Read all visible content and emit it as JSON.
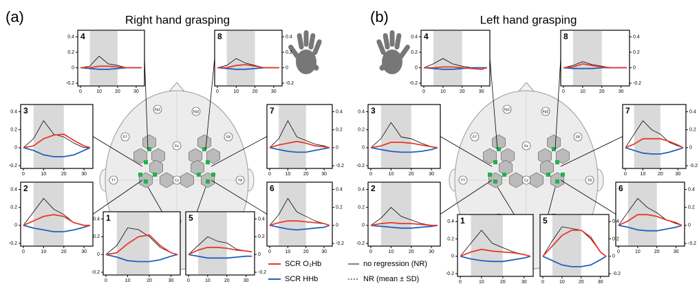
{
  "x": [
    0,
    5,
    10,
    15,
    20,
    25,
    30,
    33
  ],
  "xlim": [
    0,
    33
  ],
  "ylim": [
    -0.2,
    0.45
  ],
  "xticks": [
    0,
    10,
    20,
    30
  ],
  "yticks": [
    -0.2,
    0,
    0.2,
    0.4
  ],
  "stimulus": [
    5,
    20
  ],
  "electrodes": [
    "Fp1",
    "Fp2",
    "F7",
    "F3",
    "Fz",
    "F4",
    "F8",
    "T7",
    "C3",
    "Cz",
    "C4",
    "T8",
    "P3",
    "Pz",
    "P4"
  ],
  "legend": {
    "o2hb": {
      "label": "SCR O₂Hb",
      "color": "#e8392a"
    },
    "hhb": {
      "label": "SCR HHb",
      "color": "#1f5fbf"
    },
    "nr": {
      "label": "no regression (NR)",
      "color": "#000000"
    },
    "nr_sd": {
      "label": "NR (mean ± SD)",
      "color": "#000000"
    }
  },
  "panels": [
    {
      "label": "(a)",
      "title": "Right hand grasping",
      "plots": [
        {
          "label": 4,
          "o2hb": [
            0,
            0,
            0.02,
            0.02,
            0.01,
            0,
            0,
            0
          ],
          "hhb": [
            0,
            -0.01,
            -0.02,
            -0.02,
            -0.01,
            0,
            0,
            0
          ],
          "nr": [
            0,
            0.02,
            0.15,
            0.05,
            0.03,
            0,
            0,
            0
          ]
        },
        {
          "label": 8,
          "o2hb": [
            0,
            0,
            0.03,
            0.04,
            0.02,
            0,
            0,
            0
          ],
          "hhb": [
            0,
            -0.01,
            -0.02,
            -0.02,
            -0.01,
            0,
            0,
            0
          ],
          "nr": [
            0,
            0.03,
            0.12,
            0.06,
            0.03,
            0,
            0,
            0
          ]
        },
        {
          "label": 3,
          "o2hb": [
            0,
            0.02,
            0.1,
            0.14,
            0.15,
            0.08,
            0.02,
            0
          ],
          "hhb": [
            0,
            -0.03,
            -0.08,
            -0.1,
            -0.1,
            -0.08,
            -0.03,
            0
          ],
          "nr": [
            0,
            0.1,
            0.3,
            0.15,
            0.12,
            0.05,
            0,
            0
          ]
        },
        {
          "label": 7,
          "o2hb": [
            0,
            0.03,
            0.05,
            0.07,
            0.05,
            0.02,
            0.01,
            0
          ],
          "hhb": [
            0,
            -0.02,
            -0.04,
            -0.05,
            -0.05,
            -0.03,
            -0.01,
            0
          ],
          "nr": [
            0,
            0.1,
            0.3,
            0.12,
            0.08,
            0.04,
            0.02,
            0
          ]
        },
        {
          "label": 2,
          "o2hb": [
            0,
            0.05,
            0.1,
            0.12,
            0.1,
            0.03,
            0,
            0
          ],
          "hhb": [
            0,
            -0.03,
            -0.05,
            -0.07,
            -0.07,
            -0.05,
            -0.02,
            0
          ],
          "nr": [
            0,
            0.15,
            0.3,
            0.18,
            0.12,
            0.03,
            0,
            0
          ]
        },
        {
          "label": 6,
          "o2hb": [
            0,
            0.03,
            0.05,
            0.05,
            0.04,
            0.03,
            0.02,
            0
          ],
          "hhb": [
            0,
            -0.02,
            -0.04,
            -0.05,
            -0.04,
            -0.03,
            -0.02,
            0
          ],
          "nr": [
            0,
            0.12,
            0.3,
            0.15,
            0.1,
            0.05,
            0.02,
            0
          ]
        },
        {
          "label": 1,
          "o2hb": [
            0,
            0.02,
            0.12,
            0.2,
            0.22,
            0.1,
            0.02,
            0
          ],
          "hhb": [
            0,
            -0.03,
            -0.07,
            -0.08,
            -0.08,
            -0.06,
            -0.02,
            0
          ],
          "nr": [
            0,
            0.1,
            0.3,
            0.28,
            0.2,
            0.08,
            0.02,
            0
          ]
        },
        {
          "label": 5,
          "o2hb": [
            0,
            0.05,
            0.08,
            0.08,
            0.07,
            0.05,
            0.04,
            0.03
          ],
          "hhb": [
            0,
            -0.02,
            -0.04,
            -0.04,
            -0.04,
            -0.03,
            -0.02,
            -0.02
          ],
          "nr": [
            0,
            0.1,
            0.2,
            0.15,
            0.13,
            0.06,
            0.04,
            0.03
          ]
        }
      ]
    },
    {
      "label": "(b)",
      "title": "Left hand grasping",
      "plots": [
        {
          "label": 4,
          "o2hb": [
            0,
            0,
            0.01,
            0.01,
            0,
            -0.01,
            -0.02,
            0
          ],
          "hhb": [
            0,
            -0.01,
            -0.02,
            -0.02,
            -0.01,
            0,
            0,
            0
          ],
          "nr": [
            0,
            0.05,
            0.12,
            0.05,
            0.02,
            0,
            0,
            0
          ]
        },
        {
          "label": 8,
          "o2hb": [
            0,
            0.01,
            0.05,
            0.03,
            0.01,
            0,
            0,
            0
          ],
          "hhb": [
            0,
            -0.01,
            -0.01,
            -0.01,
            0,
            0,
            0,
            0
          ],
          "nr": [
            0,
            0.03,
            0.08,
            0.04,
            0.02,
            0,
            0,
            0
          ]
        },
        {
          "label": 3,
          "o2hb": [
            0,
            0.02,
            0.06,
            0.06,
            0.05,
            0.03,
            0.01,
            0
          ],
          "hhb": [
            0,
            -0.02,
            -0.04,
            -0.05,
            -0.05,
            -0.04,
            -0.02,
            0
          ],
          "nr": [
            0,
            0.1,
            0.28,
            0.12,
            0.1,
            0.05,
            0.01,
            0
          ]
        },
        {
          "label": 7,
          "o2hb": [
            0,
            0.04,
            0.1,
            0.1,
            0.1,
            0.07,
            0.03,
            0
          ],
          "hhb": [
            0,
            -0.03,
            -0.06,
            -0.07,
            -0.07,
            -0.05,
            -0.02,
            0
          ],
          "nr": [
            0,
            0.15,
            0.3,
            0.2,
            0.15,
            0.06,
            0.02,
            0
          ]
        },
        {
          "label": 2,
          "o2hb": [
            0,
            0.02,
            0.03,
            0.02,
            0.02,
            0.01,
            0,
            0
          ],
          "hhb": [
            0,
            -0.01,
            -0.02,
            -0.03,
            -0.03,
            -0.02,
            -0.01,
            0
          ],
          "nr": [
            0,
            0.08,
            0.2,
            0.1,
            0.06,
            0.02,
            0,
            0
          ]
        },
        {
          "label": 6,
          "o2hb": [
            0,
            0.05,
            0.12,
            0.12,
            0.1,
            0.06,
            0.03,
            0
          ],
          "hhb": [
            0,
            -0.02,
            -0.05,
            -0.06,
            -0.06,
            -0.04,
            -0.02,
            0
          ],
          "nr": [
            0,
            0.15,
            0.3,
            0.2,
            0.14,
            0.06,
            0.02,
            0
          ]
        },
        {
          "label": 1,
          "o2hb": [
            0,
            0.05,
            0.08,
            0.06,
            0.05,
            0.04,
            0.02,
            0
          ],
          "hhb": [
            0,
            -0.03,
            -0.05,
            -0.06,
            -0.06,
            -0.04,
            -0.02,
            0
          ],
          "nr": [
            0,
            0.15,
            0.3,
            0.15,
            0.1,
            0.05,
            0.02,
            0
          ]
        },
        {
          "label": 5,
          "o2hb": [
            0,
            0.12,
            0.24,
            0.3,
            0.3,
            0.22,
            0.05,
            0
          ],
          "hhb": [
            0,
            -0.05,
            -0.1,
            -0.12,
            -0.12,
            -0.1,
            -0.04,
            0
          ],
          "nr": [
            0,
            0.18,
            0.34,
            0.32,
            0.3,
            0.2,
            0.05,
            0
          ]
        }
      ]
    }
  ]
}
